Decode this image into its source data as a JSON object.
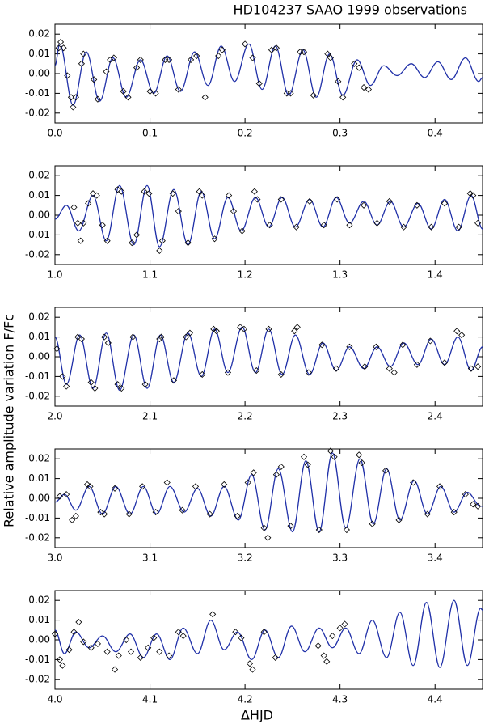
{
  "title": "HD104237 SAAO 1999 observations",
  "y_label": "Relative amplitude variation F/Fc",
  "x_label": "ΔHJD",
  "chart_data": [
    {
      "type": "line",
      "line_color": "#2030a8",
      "point_color": "#000000",
      "xlim": [
        0,
        0.45
      ],
      "ylim": [
        -0.025,
        0.025
      ],
      "xticks": [
        {
          "value": 0,
          "label": "0.0"
        },
        0.1,
        0.2,
        0.3,
        0.4
      ],
      "yticks": [
        0.02,
        0.01,
        {
          "value": 0,
          "label": "0.00"
        },
        -0.01,
        -0.02
      ],
      "line": {
        "x": [
          0.0,
          0.005,
          0.019,
          0.033,
          0.047,
          0.061,
          0.075,
          0.09,
          0.104,
          0.118,
          0.132,
          0.147,
          0.161,
          0.175,
          0.189,
          0.204,
          0.218,
          0.232,
          0.246,
          0.261,
          0.275,
          0.289,
          0.303,
          0.318,
          0.332,
          0.346,
          0.36,
          0.375,
          0.389,
          0.403,
          0.417,
          0.432,
          0.446,
          0.45
        ],
        "y": [
          0.004,
          0.015,
          -0.016,
          0.011,
          -0.014,
          0.008,
          -0.012,
          0.007,
          -0.01,
          0.009,
          -0.009,
          0.011,
          -0.006,
          0.014,
          -0.004,
          0.015,
          -0.008,
          0.014,
          -0.011,
          0.012,
          -0.012,
          0.01,
          -0.011,
          0.007,
          -0.006,
          0.004,
          -0.001,
          0.005,
          -0.002,
          0.006,
          -0.003,
          0.008,
          -0.004,
          -0.002
        ]
      },
      "points": {
        "x": [
          0.004,
          0.006,
          0.009,
          0.013,
          0.017,
          0.019,
          0.022,
          0.028,
          0.03,
          0.041,
          0.045,
          0.054,
          0.058,
          0.062,
          0.072,
          0.077,
          0.086,
          0.09,
          0.1,
          0.106,
          0.116,
          0.12,
          0.13,
          0.143,
          0.149,
          0.158,
          0.172,
          0.176,
          0.2,
          0.208,
          0.215,
          0.228,
          0.233,
          0.244,
          0.248,
          0.258,
          0.262,
          0.272,
          0.287,
          0.29,
          0.298,
          0.303,
          0.315,
          0.32,
          0.325,
          0.33
        ],
        "y": [
          0.013,
          0.016,
          0.013,
          -0.001,
          -0.012,
          -0.017,
          -0.012,
          0.005,
          0.01,
          -0.003,
          -0.013,
          0.001,
          0.007,
          0.008,
          -0.009,
          -0.012,
          0.003,
          0.007,
          -0.009,
          -0.01,
          0.007,
          0.007,
          -0.008,
          0.007,
          0.009,
          -0.012,
          0.009,
          0.012,
          0.015,
          0.008,
          -0.005,
          0.012,
          0.013,
          -0.01,
          -0.01,
          0.011,
          0.011,
          -0.011,
          0.01,
          0.008,
          -0.004,
          -0.012,
          0.005,
          0.003,
          -0.007,
          -0.008
        ]
      }
    },
    {
      "type": "line",
      "line_color": "#2030a8",
      "point_color": "#000000",
      "xlim": [
        1,
        1.45
      ],
      "ylim": [
        -0.025,
        0.025
      ],
      "xticks": [
        {
          "value": 1,
          "label": "1.0"
        },
        1.1,
        1.2,
        1.3,
        1.4
      ],
      "yticks": [
        0.02,
        0.01,
        {
          "value": 0,
          "label": "0.00"
        },
        -0.01,
        -0.02
      ],
      "line": {
        "x": [
          1.0,
          1.012,
          1.025,
          1.04,
          1.054,
          1.068,
          1.083,
          1.097,
          1.11,
          1.125,
          1.14,
          1.154,
          1.168,
          1.182,
          1.196,
          1.211,
          1.225,
          1.239,
          1.253,
          1.268,
          1.282,
          1.296,
          1.31,
          1.325,
          1.339,
          1.353,
          1.367,
          1.382,
          1.396,
          1.41,
          1.424,
          1.438,
          1.45
        ],
        "y": [
          -0.002,
          0.005,
          -0.008,
          0.01,
          -0.013,
          0.015,
          -0.015,
          0.015,
          -0.016,
          0.013,
          -0.015,
          0.012,
          -0.012,
          0.009,
          -0.008,
          0.009,
          -0.006,
          0.009,
          -0.006,
          0.008,
          -0.006,
          0.009,
          -0.004,
          0.007,
          -0.005,
          0.007,
          -0.006,
          0.006,
          -0.007,
          0.008,
          -0.008,
          0.01,
          -0.007
        ]
      },
      "points": {
        "x": [
          1.02,
          1.024,
          1.027,
          1.03,
          1.035,
          1.04,
          1.044,
          1.05,
          1.055,
          1.066,
          1.07,
          1.081,
          1.086,
          1.094,
          1.099,
          1.11,
          1.113,
          1.124,
          1.13,
          1.14,
          1.152,
          1.155,
          1.168,
          1.183,
          1.188,
          1.197,
          1.21,
          1.213,
          1.226,
          1.238,
          1.254,
          1.268,
          1.283,
          1.297,
          1.31,
          1.325,
          1.339,
          1.352,
          1.367,
          1.381,
          1.396,
          1.41,
          1.425,
          1.437,
          1.44,
          1.445
        ],
        "y": [
          0.004,
          -0.004,
          -0.013,
          -0.004,
          0.006,
          0.011,
          0.01,
          -0.005,
          -0.013,
          0.013,
          0.012,
          -0.014,
          -0.01,
          0.012,
          0.011,
          -0.018,
          -0.013,
          0.011,
          0.002,
          -0.014,
          0.012,
          0.01,
          -0.012,
          0.01,
          0.002,
          -0.008,
          0.012,
          0.008,
          -0.005,
          0.008,
          -0.006,
          0.007,
          -0.005,
          0.008,
          -0.005,
          0.005,
          -0.004,
          0.007,
          -0.006,
          0.005,
          -0.006,
          0.006,
          -0.006,
          0.011,
          0.01,
          -0.004
        ]
      }
    },
    {
      "type": "line",
      "line_color": "#2030a8",
      "point_color": "#000000",
      "xlim": [
        2,
        2.45
      ],
      "ylim": [
        -0.025,
        0.025
      ],
      "xticks": [
        {
          "value": 2,
          "label": "2.0"
        },
        2.1,
        2.2,
        2.3,
        2.4
      ],
      "yticks": [
        0.02,
        0.01,
        {
          "value": 0,
          "label": "0.00"
        },
        -0.01,
        -0.02
      ],
      "line": {
        "x": [
          2.0,
          2.012,
          2.026,
          2.04,
          2.054,
          2.068,
          2.083,
          2.097,
          2.111,
          2.125,
          2.14,
          2.154,
          2.168,
          2.182,
          2.197,
          2.211,
          2.225,
          2.239,
          2.253,
          2.268,
          2.282,
          2.296,
          2.31,
          2.325,
          2.339,
          2.353,
          2.367,
          2.382,
          2.396,
          2.41,
          2.424,
          2.438,
          2.45
        ],
        "y": [
          0.01,
          -0.014,
          0.011,
          -0.016,
          0.012,
          -0.017,
          0.011,
          -0.016,
          0.011,
          -0.013,
          0.012,
          -0.01,
          0.014,
          -0.008,
          0.015,
          -0.008,
          0.014,
          -0.009,
          0.011,
          -0.009,
          0.007,
          -0.007,
          0.005,
          -0.006,
          0.005,
          -0.005,
          0.007,
          -0.004,
          0.009,
          -0.004,
          0.01,
          -0.007,
          0.005
        ]
      },
      "points": {
        "x": [
          2.002,
          2.008,
          2.012,
          2.024,
          2.028,
          2.038,
          2.042,
          2.052,
          2.056,
          2.066,
          2.07,
          2.082,
          2.095,
          2.11,
          2.112,
          2.125,
          2.138,
          2.142,
          2.155,
          2.167,
          2.17,
          2.182,
          2.195,
          2.199,
          2.212,
          2.225,
          2.238,
          2.252,
          2.255,
          2.267,
          2.281,
          2.296,
          2.31,
          2.326,
          2.338,
          2.352,
          2.357,
          2.366,
          2.381,
          2.395,
          2.41,
          2.423,
          2.428,
          2.438,
          2.445
        ],
        "y": [
          0.004,
          -0.01,
          -0.015,
          0.01,
          0.009,
          -0.013,
          -0.016,
          0.01,
          0.007,
          -0.014,
          -0.016,
          0.01,
          -0.014,
          0.009,
          0.01,
          -0.012,
          0.01,
          0.012,
          -0.009,
          0.014,
          0.013,
          -0.008,
          0.015,
          0.014,
          -0.007,
          0.014,
          -0.009,
          0.013,
          0.015,
          -0.008,
          0.006,
          -0.006,
          0.005,
          -0.005,
          0.005,
          -0.006,
          -0.008,
          0.006,
          -0.004,
          0.008,
          -0.003,
          0.013,
          0.011,
          -0.006,
          -0.005
        ]
      }
    },
    {
      "type": "line",
      "line_color": "#2030a8",
      "point_color": "#000000",
      "xlim": [
        3,
        3.45
      ],
      "ylim": [
        -0.025,
        0.025
      ],
      "xticks": [
        {
          "value": 3,
          "label": "3.0"
        },
        3.1,
        3.2,
        3.3,
        3.4
      ],
      "yticks": [
        0.02,
        0.01,
        {
          "value": 0,
          "label": "0.00"
        },
        -0.01,
        -0.02
      ],
      "line": {
        "x": [
          3.0,
          3.01,
          3.022,
          3.036,
          3.05,
          3.064,
          3.079,
          3.093,
          3.107,
          3.121,
          3.136,
          3.15,
          3.164,
          3.178,
          3.193,
          3.207,
          3.221,
          3.235,
          3.25,
          3.264,
          3.278,
          3.292,
          3.306,
          3.321,
          3.335,
          3.349,
          3.363,
          3.378,
          3.392,
          3.406,
          3.42,
          3.434,
          3.448,
          3.45
        ],
        "y": [
          -0.002,
          0.002,
          -0.006,
          0.006,
          -0.008,
          0.006,
          -0.008,
          0.006,
          -0.008,
          0.006,
          -0.007,
          0.005,
          -0.009,
          0.006,
          -0.011,
          0.012,
          -0.016,
          0.015,
          -0.017,
          0.019,
          -0.017,
          0.023,
          -0.015,
          0.02,
          -0.013,
          0.015,
          -0.011,
          0.009,
          -0.008,
          0.006,
          -0.007,
          0.003,
          -0.004,
          -0.004
        ]
      },
      "points": {
        "x": [
          3.005,
          3.012,
          3.018,
          3.022,
          3.034,
          3.037,
          3.048,
          3.052,
          3.063,
          3.078,
          3.092,
          3.106,
          3.118,
          3.134,
          3.148,
          3.163,
          3.178,
          3.192,
          3.203,
          3.209,
          3.22,
          3.224,
          3.233,
          3.238,
          3.248,
          3.262,
          3.266,
          3.278,
          3.29,
          3.294,
          3.307,
          3.32,
          3.323,
          3.334,
          3.348,
          3.362,
          3.377,
          3.392,
          3.405,
          3.42,
          3.432,
          3.44,
          3.445
        ],
        "y": [
          0.001,
          0.002,
          -0.011,
          -0.009,
          0.007,
          0.006,
          -0.007,
          -0.008,
          0.005,
          -0.008,
          0.006,
          -0.007,
          0.008,
          -0.006,
          0.006,
          -0.008,
          0.007,
          -0.009,
          0.008,
          0.013,
          -0.015,
          -0.02,
          0.012,
          0.016,
          -0.014,
          0.021,
          0.017,
          -0.016,
          0.024,
          0.021,
          -0.016,
          0.022,
          0.018,
          -0.013,
          0.014,
          -0.011,
          0.008,
          -0.008,
          0.006,
          -0.007,
          0.002,
          -0.003,
          -0.004
        ]
      }
    },
    {
      "type": "line",
      "line_color": "#2030a8",
      "point_color": "#000000",
      "xlim": [
        4,
        4.45
      ],
      "ylim": [
        -0.025,
        0.025
      ],
      "xticks": [
        {
          "value": 4,
          "label": "4.0"
        },
        4.1,
        4.2,
        4.3,
        4.4
      ],
      "yticks": [
        0.02,
        0.01,
        {
          "value": 0,
          "label": "0.00"
        },
        -0.01,
        -0.02
      ],
      "line": {
        "x": [
          4.0,
          4.01,
          4.022,
          4.036,
          4.05,
          4.064,
          4.079,
          4.093,
          4.107,
          4.121,
          4.135,
          4.15,
          4.164,
          4.178,
          4.192,
          4.207,
          4.221,
          4.235,
          4.249,
          4.263,
          4.278,
          4.292,
          4.306,
          4.32,
          4.334,
          4.349,
          4.363,
          4.377,
          4.391,
          4.405,
          4.42,
          4.434,
          4.448,
          4.45
        ],
        "y": [
          0.005,
          -0.007,
          0.004,
          -0.004,
          0.002,
          -0.006,
          0.003,
          -0.009,
          0.003,
          -0.01,
          0.006,
          -0.007,
          0.01,
          -0.005,
          0.004,
          -0.01,
          0.005,
          -0.009,
          0.007,
          -0.006,
          0.006,
          -0.004,
          0.006,
          -0.007,
          0.01,
          -0.009,
          0.014,
          -0.013,
          0.019,
          -0.014,
          0.02,
          -0.013,
          0.016,
          0.015
        ]
      },
      "points": {
        "x": [
          4.0,
          4.005,
          4.008,
          4.015,
          4.02,
          4.025,
          4.03,
          4.038,
          4.045,
          4.055,
          4.063,
          4.067,
          4.075,
          4.08,
          4.09,
          4.098,
          4.104,
          4.11,
          4.12,
          4.13,
          4.135,
          4.166,
          4.19,
          4.196,
          4.205,
          4.208,
          4.22,
          4.232,
          4.277,
          4.283,
          4.286,
          4.292,
          4.3,
          4.305
        ],
        "y": [
          0.003,
          -0.01,
          -0.013,
          -0.005,
          0.004,
          0.009,
          -0.001,
          -0.004,
          -0.002,
          -0.006,
          -0.015,
          -0.008,
          0.0,
          -0.006,
          -0.009,
          -0.004,
          0.001,
          -0.006,
          -0.008,
          0.004,
          0.002,
          0.013,
          0.004,
          0.001,
          -0.012,
          -0.015,
          0.004,
          -0.009,
          -0.003,
          -0.008,
          -0.011,
          0.002,
          0.006,
          0.008
        ]
      }
    }
  ]
}
